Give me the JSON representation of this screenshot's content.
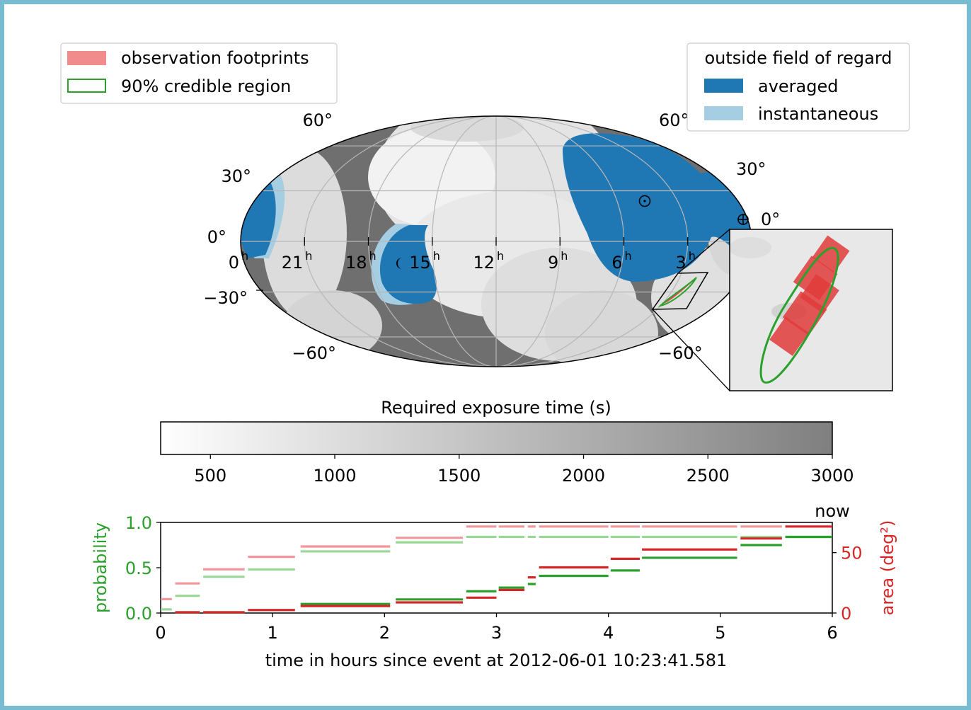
{
  "chart_data": [
    {
      "type": "map",
      "projection": "astro mollweide",
      "ra_tick_labels": [
        "0",
        "21",
        "18",
        "15",
        "12",
        "9",
        "6",
        "3"
      ],
      "ra_tick_unit": "h",
      "dec_tick_labels_left": [
        "60°",
        "30°",
        "0°",
        "−30°",
        "−60°"
      ],
      "dec_tick_labels_right": [
        "60°",
        "30°",
        "0°",
        "−60°"
      ],
      "background": "required exposure time (grayscale)",
      "legend_left": [
        {
          "label": "observation footprints",
          "color": "#f08c8c",
          "style": "filled"
        },
        {
          "label": "90% credible region",
          "color": "#2ca02c",
          "style": "outline"
        }
      ],
      "legend_right": {
        "title": "outside field of regard",
        "entries": [
          {
            "label": "averaged",
            "color": "#1f77b4"
          },
          {
            "label": "instantaneous",
            "color": "#a6cee3"
          }
        ]
      },
      "grid": true
    },
    {
      "type": "colorbar",
      "label": "Required exposure time (s)",
      "ticks": [
        500,
        1000,
        1500,
        2000,
        2500,
        3000
      ],
      "range": [
        300,
        3000
      ],
      "colors": [
        "#ffffff",
        "#7f7f7f"
      ]
    },
    {
      "type": "step",
      "xlabel": "time in hours since event at 2012-06-01 10:23:41.581",
      "x_ticks": [
        0,
        1,
        2,
        3,
        4,
        5,
        6
      ],
      "xlim": [
        0,
        6
      ],
      "now_label": "now",
      "y_left": {
        "label": "probability",
        "ticks": [
          "0.0",
          "0.5",
          "1.0"
        ],
        "lim": [
          0,
          1
        ],
        "color": "#2ca02c"
      },
      "y_right": {
        "label": "area (deg²)",
        "ticks": [
          "0",
          "50"
        ],
        "lim": [
          0,
          75
        ],
        "color": "#d62728"
      },
      "series": [
        {
          "axis": "left",
          "variant": "cumulative-light",
          "color": "#98d894",
          "segments": [
            [
              0,
              0.1,
              0.04
            ],
            [
              0.13,
              0.35,
              0.19
            ],
            [
              0.38,
              0.75,
              0.4
            ],
            [
              0.78,
              1.2,
              0.48
            ],
            [
              1.25,
              2.05,
              0.68
            ],
            [
              2.1,
              2.7,
              0.78
            ],
            [
              2.73,
              3.0,
              0.84
            ],
            [
              3.02,
              3.25,
              0.84
            ],
            [
              3.28,
              3.35,
              0.84
            ],
            [
              3.38,
              4.0,
              0.84
            ],
            [
              4.02,
              4.28,
              0.84
            ],
            [
              4.3,
              5.15,
              0.84
            ],
            [
              5.18,
              5.55,
              0.84
            ],
            [
              5.58,
              6.0,
              0.84
            ]
          ]
        },
        {
          "axis": "left",
          "variant": "instantaneous",
          "color": "#2ca02c",
          "segments": [
            [
              0.13,
              0.35,
              0.0
            ],
            [
              0.38,
              0.75,
              0.0
            ],
            [
              1.25,
              2.05,
              0.1
            ],
            [
              2.1,
              2.7,
              0.15
            ],
            [
              2.73,
              3.0,
              0.24
            ],
            [
              3.02,
              3.25,
              0.28
            ],
            [
              3.28,
              3.35,
              0.32
            ],
            [
              3.38,
              4.0,
              0.41
            ],
            [
              4.02,
              4.28,
              0.47
            ],
            [
              4.3,
              5.15,
              0.61
            ],
            [
              5.18,
              5.55,
              0.75
            ],
            [
              5.58,
              6.0,
              0.84
            ]
          ]
        },
        {
          "axis": "right",
          "variant": "cumulative-light",
          "color": "#f0979b",
          "segments": [
            [
              0,
              0.1,
              11.5
            ],
            [
              0.13,
              0.35,
              24.5
            ],
            [
              0.38,
              0.75,
              36.2
            ],
            [
              0.78,
              1.2,
              46.5
            ],
            [
              1.25,
              2.05,
              55.1
            ],
            [
              2.1,
              2.7,
              62.3
            ],
            [
              2.73,
              3.0,
              71.6
            ],
            [
              3.02,
              3.25,
              71.6
            ],
            [
              3.28,
              3.35,
              71.6
            ],
            [
              3.38,
              4.0,
              71.6
            ],
            [
              4.02,
              4.28,
              71.6
            ],
            [
              4.3,
              5.15,
              71.6
            ],
            [
              5.18,
              5.55,
              71.6
            ]
          ]
        },
        {
          "axis": "right",
          "variant": "instantaneous",
          "color": "#d62728",
          "segments": [
            [
              0.13,
              0.35,
              0.5
            ],
            [
              0.38,
              0.75,
              0.3
            ],
            [
              0.78,
              1.2,
              2.5
            ],
            [
              1.25,
              2.05,
              5.8
            ],
            [
              2.1,
              2.7,
              8.8
            ],
            [
              2.73,
              3.0,
              12.7
            ],
            [
              3.02,
              3.25,
              19.1
            ],
            [
              3.28,
              3.35,
              29.5
            ],
            [
              3.38,
              4.0,
              37.8
            ],
            [
              4.02,
              4.28,
              44.9
            ],
            [
              4.3,
              5.15,
              52.6
            ],
            [
              5.18,
              5.55,
              61.7
            ],
            [
              5.58,
              6.0,
              71.6
            ]
          ]
        }
      ]
    }
  ]
}
